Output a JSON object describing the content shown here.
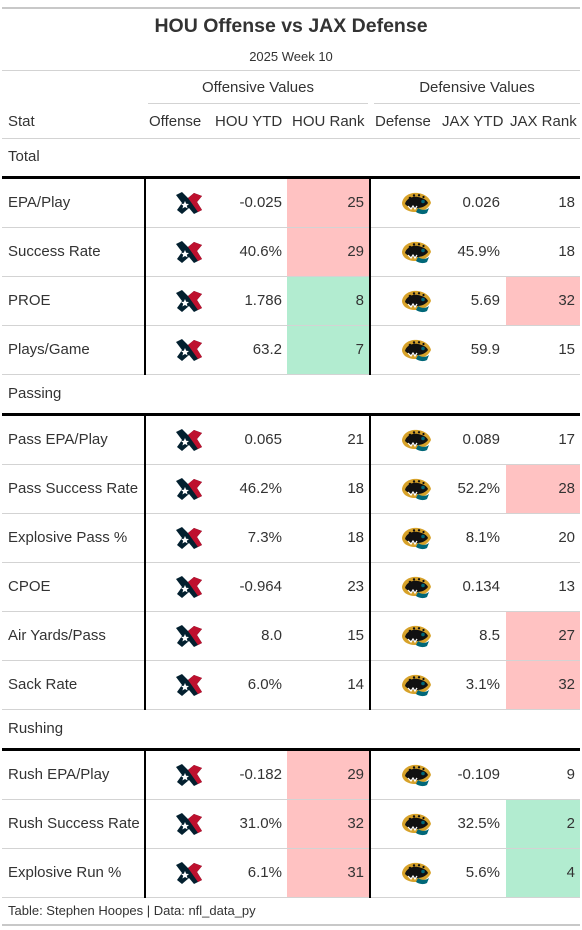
{
  "title": "HOU Offense vs JAX Defense",
  "subtitle": "2025 Week 10",
  "spanners": {
    "offense": "Offensive Values",
    "defense": "Defensive Values"
  },
  "columns": {
    "stat": "Stat",
    "offense": "Offense",
    "off_ytd": "HOU YTD",
    "off_rank": "HOU Rank",
    "defense": "Defense",
    "def_ytd": "JAX YTD",
    "def_rank": "JAX Rank"
  },
  "colors": {
    "bad": "#ffc2c2",
    "good": "#b2ecd0",
    "houston_navy": "#03202f",
    "houston_red": "#c8102e",
    "jax_teal": "#006778",
    "jax_gold": "#d7a22a"
  },
  "icons": {
    "offense": "houston-texans-logo-icon",
    "defense": "jacksonville-jaguars-logo-icon"
  },
  "groups": [
    {
      "label": "Total",
      "rows": [
        {
          "stat": "EPA/Play",
          "off_ytd": "-0.025",
          "off_rank": "25",
          "off_hl": "bad",
          "def_ytd": "0.026",
          "def_rank": "18",
          "def_hl": ""
        },
        {
          "stat": "Success Rate",
          "off_ytd": "40.6%",
          "off_rank": "29",
          "off_hl": "bad",
          "def_ytd": "45.9%",
          "def_rank": "18",
          "def_hl": ""
        },
        {
          "stat": "PROE",
          "off_ytd": "1.786",
          "off_rank": "8",
          "off_hl": "good",
          "def_ytd": "5.69",
          "def_rank": "32",
          "def_hl": "bad"
        },
        {
          "stat": "Plays/Game",
          "off_ytd": "63.2",
          "off_rank": "7",
          "off_hl": "good",
          "def_ytd": "59.9",
          "def_rank": "15",
          "def_hl": ""
        }
      ]
    },
    {
      "label": "Passing",
      "rows": [
        {
          "stat": "Pass EPA/Play",
          "off_ytd": "0.065",
          "off_rank": "21",
          "off_hl": "",
          "def_ytd": "0.089",
          "def_rank": "17",
          "def_hl": ""
        },
        {
          "stat": "Pass Success Rate",
          "off_ytd": "46.2%",
          "off_rank": "18",
          "off_hl": "",
          "def_ytd": "52.2%",
          "def_rank": "28",
          "def_hl": "bad"
        },
        {
          "stat": "Explosive Pass %",
          "off_ytd": "7.3%",
          "off_rank": "18",
          "off_hl": "",
          "def_ytd": "8.1%",
          "def_rank": "20",
          "def_hl": ""
        },
        {
          "stat": "CPOE",
          "off_ytd": "-0.964",
          "off_rank": "23",
          "off_hl": "",
          "def_ytd": "0.134",
          "def_rank": "13",
          "def_hl": ""
        },
        {
          "stat": "Air Yards/Pass",
          "off_ytd": "8.0",
          "off_rank": "15",
          "off_hl": "",
          "def_ytd": "8.5",
          "def_rank": "27",
          "def_hl": "bad"
        },
        {
          "stat": "Sack Rate",
          "off_ytd": "6.0%",
          "off_rank": "14",
          "off_hl": "",
          "def_ytd": "3.1%",
          "def_rank": "32",
          "def_hl": "bad"
        }
      ]
    },
    {
      "label": "Rushing",
      "rows": [
        {
          "stat": "Rush EPA/Play",
          "off_ytd": "-0.182",
          "off_rank": "29",
          "off_hl": "bad",
          "def_ytd": "-0.109",
          "def_rank": "9",
          "def_hl": ""
        },
        {
          "stat": "Rush Success Rate",
          "off_ytd": "31.0%",
          "off_rank": "32",
          "off_hl": "bad",
          "def_ytd": "32.5%",
          "def_rank": "2",
          "def_hl": "good"
        },
        {
          "stat": "Explosive Run %",
          "off_ytd": "6.1%",
          "off_rank": "31",
          "off_hl": "bad",
          "def_ytd": "5.6%",
          "def_rank": "4",
          "def_hl": "good"
        }
      ]
    }
  ],
  "footer": "Table: Stephen Hoopes | Data: nfl_data_py"
}
